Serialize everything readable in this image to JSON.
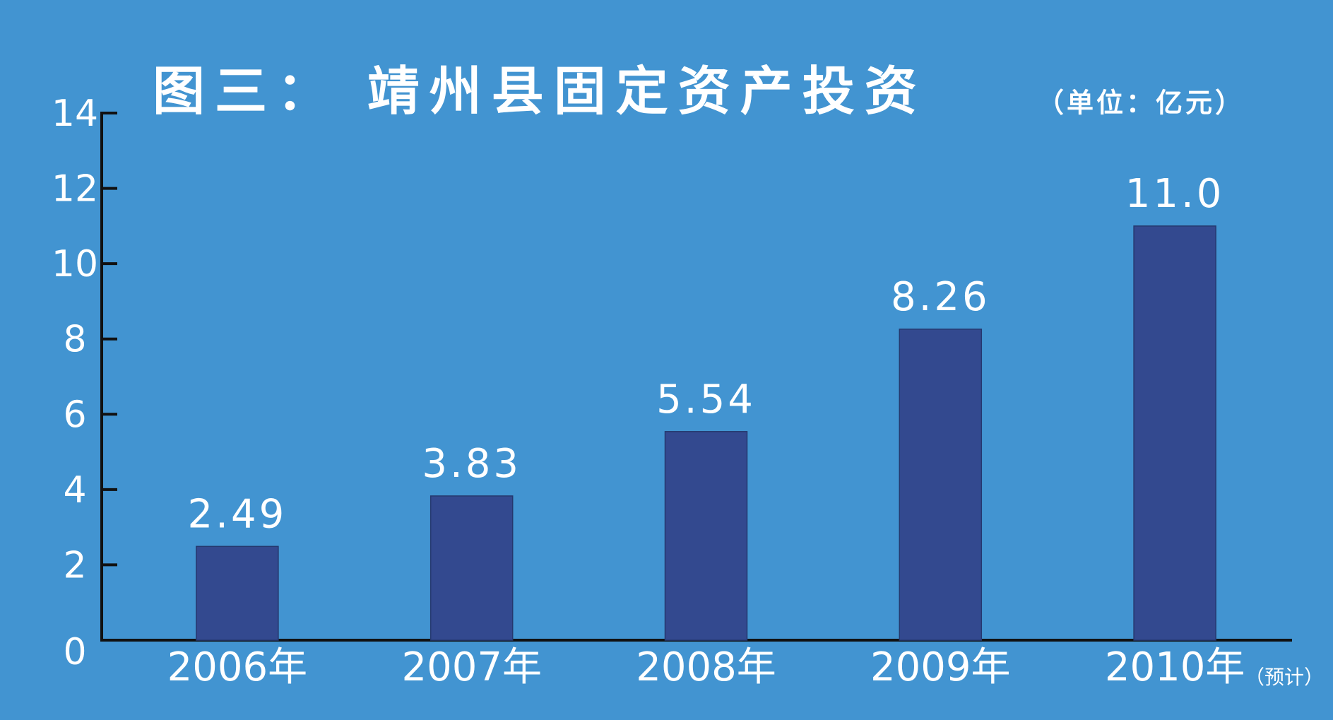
{
  "chart_data": {
    "type": "bar",
    "title": "图三：  靖州县固定资产投资",
    "subtitle": "（单位：亿元）",
    "categories": [
      "2006年",
      "2007年",
      "2008年",
      "2009年",
      "2010年"
    ],
    "values": [
      2.49,
      3.83,
      5.54,
      8.26,
      11
    ],
    "value_labels": [
      "2.49",
      "3.83",
      "5.54",
      "8.26",
      "11.0"
    ],
    "annotation": "（预计）",
    "color": "#33498f",
    "ylim": [
      0,
      14
    ],
    "yticks": [
      0,
      2,
      4,
      6,
      8,
      10,
      12,
      14
    ],
    "grid": false
  }
}
